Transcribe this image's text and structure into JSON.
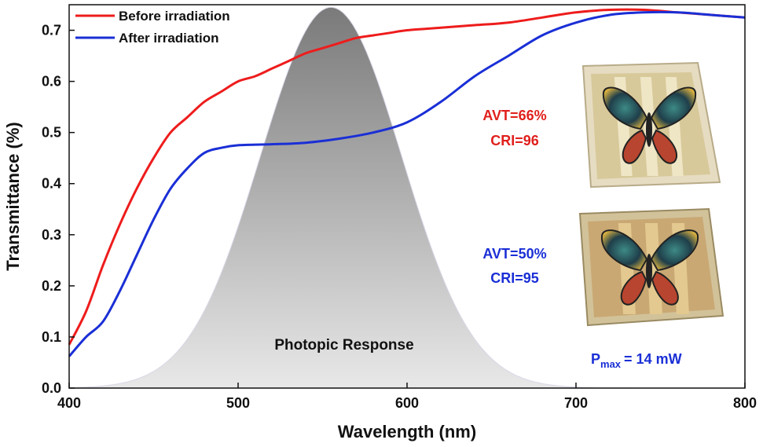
{
  "chart_data": {
    "type": "line",
    "title": "",
    "xlabel": "Wavelength (nm)",
    "ylabel": "Transmittance (%)",
    "xlim": [
      400,
      800
    ],
    "ylim": [
      0.0,
      0.75
    ],
    "xticks": [
      400,
      500,
      600,
      700,
      800
    ],
    "yticks": [
      "0.0",
      "0.1",
      "0.2",
      "0.3",
      "0.4",
      "0.5",
      "0.6",
      "0.7"
    ],
    "legend_position": "top-left",
    "series": [
      {
        "name": "Before irradiation",
        "color": "#ee1c1c",
        "x": [
          400,
          410,
          420,
          430,
          440,
          450,
          460,
          470,
          480,
          490,
          500,
          510,
          520,
          530,
          540,
          550,
          560,
          570,
          580,
          590,
          600,
          620,
          640,
          660,
          680,
          700,
          720,
          740,
          760,
          780,
          800
        ],
        "y": [
          0.085,
          0.15,
          0.24,
          0.32,
          0.39,
          0.45,
          0.5,
          0.53,
          0.56,
          0.58,
          0.6,
          0.61,
          0.625,
          0.64,
          0.655,
          0.665,
          0.675,
          0.685,
          0.69,
          0.695,
          0.7,
          0.705,
          0.71,
          0.715,
          0.725,
          0.735,
          0.74,
          0.74,
          0.735,
          0.73,
          0.725
        ]
      },
      {
        "name": "After irradiation",
        "color": "#1a2fd6",
        "x": [
          400,
          410,
          420,
          430,
          440,
          450,
          460,
          470,
          480,
          490,
          500,
          520,
          540,
          560,
          580,
          600,
          620,
          640,
          660,
          680,
          700,
          720,
          740,
          760,
          780,
          800
        ],
        "y": [
          0.062,
          0.1,
          0.13,
          0.19,
          0.26,
          0.33,
          0.39,
          0.43,
          0.46,
          0.47,
          0.475,
          0.477,
          0.48,
          0.488,
          0.5,
          0.52,
          0.56,
          0.61,
          0.65,
          0.69,
          0.715,
          0.73,
          0.735,
          0.735,
          0.73,
          0.725
        ]
      }
    ],
    "photopic": {
      "label": "Photopic Response",
      "peak_nm": 555,
      "peak_value": 0.745,
      "sigma_nm": 42,
      "color_top": "#7a7a7a",
      "color_bottom": "#e8e8e8"
    },
    "annotations": [
      {
        "text": "AVT=66%",
        "color": "#e0201c"
      },
      {
        "text": "CRI=96",
        "color": "#e0201c"
      },
      {
        "text": "AVT=50%",
        "color": "#1a2fd6"
      },
      {
        "text": "CRI=95",
        "color": "#1a2fd6"
      }
    ],
    "pmax": {
      "base": "P",
      "sub": "max",
      "rest": "= 14 mW",
      "color": "#1a2fd6"
    }
  }
}
